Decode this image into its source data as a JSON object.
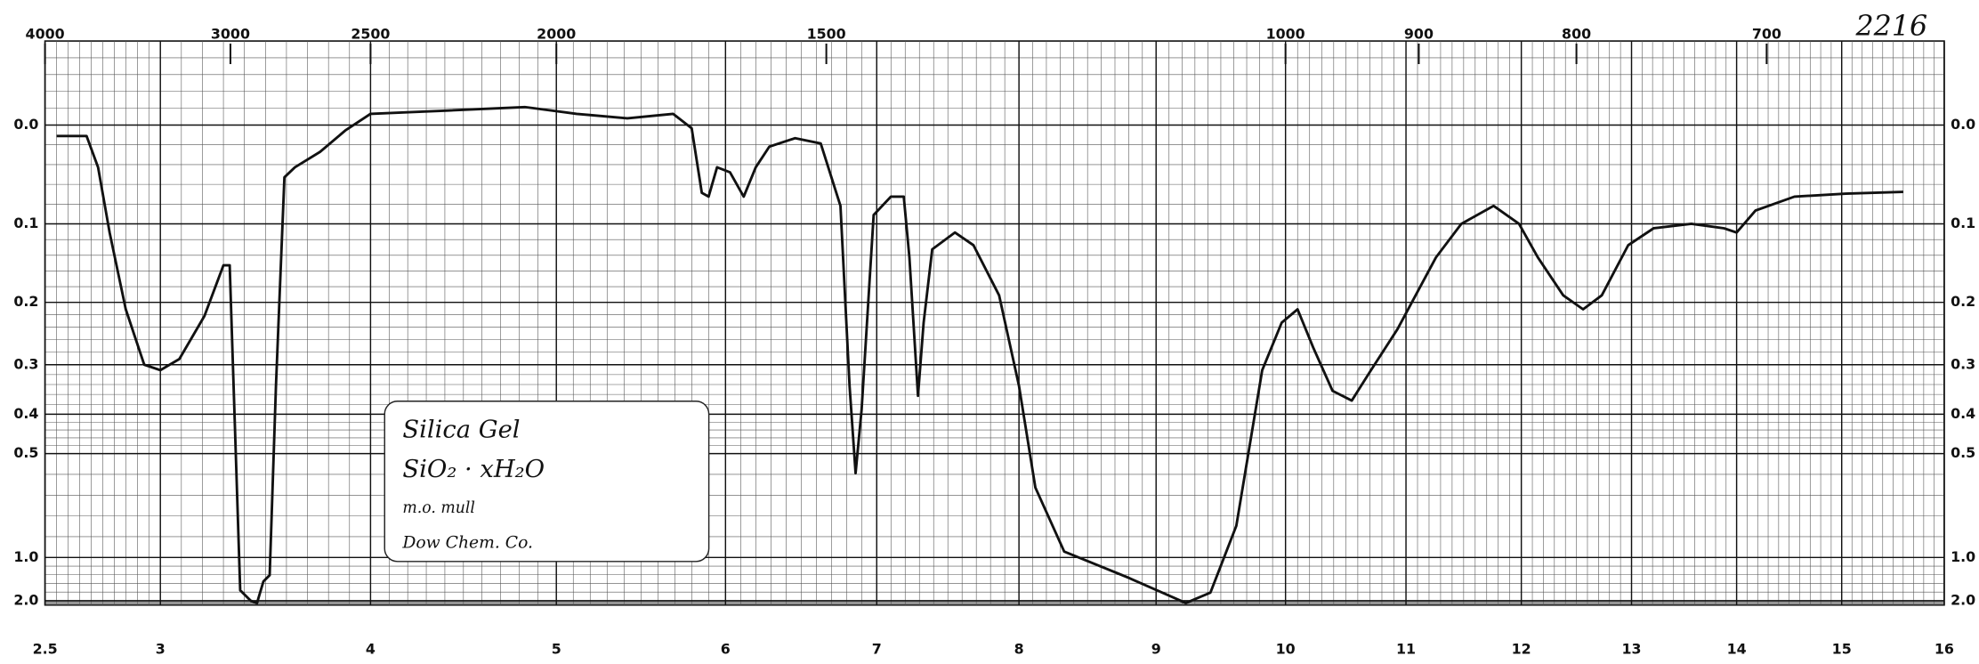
{
  "chart_data": {
    "type": "line",
    "yscale": "transmittance",
    "x": [
      2.55,
      2.68,
      2.73,
      2.78,
      2.85,
      2.93,
      3.0,
      3.09,
      3.21,
      3.3,
      3.33,
      3.38,
      3.43,
      3.46,
      3.49,
      3.52,
      3.55,
      3.59,
      3.64,
      3.76,
      3.88,
      4.0,
      4.42,
      4.83,
      5.12,
      5.42,
      5.69,
      5.8,
      5.86,
      5.9,
      5.95,
      6.03,
      6.12,
      6.2,
      6.29,
      6.46,
      6.63,
      6.76,
      6.82,
      6.86,
      6.9,
      6.98,
      7.1,
      7.19,
      7.23,
      7.29,
      7.33,
      7.39,
      7.55,
      7.68,
      7.86,
      8.0,
      8.12,
      8.33,
      8.79,
      9.23,
      9.42,
      9.62,
      9.82,
      9.97,
      10.1,
      10.23,
      10.39,
      10.55,
      10.71,
      10.93,
      11.26,
      11.48,
      11.76,
      11.98,
      12.15,
      12.38,
      12.56,
      12.73,
      12.97,
      13.21,
      13.57,
      13.88,
      14.0,
      14.18,
      14.55,
      15.04,
      15.6
    ],
    "values": [
      0.01,
      0.01,
      0.04,
      0.11,
      0.21,
      0.3,
      0.31,
      0.29,
      0.22,
      0.15,
      0.15,
      1.5,
      2.0,
      2.3,
      1.3,
      1.2,
      0.34,
      0.05,
      0.04,
      0.025,
      0.005,
      -0.01,
      -0.013,
      -0.016,
      -0.01,
      -0.006,
      -0.01,
      0.003,
      0.066,
      0.07,
      0.04,
      0.045,
      0.07,
      0.04,
      0.02,
      0.012,
      0.017,
      0.08,
      0.34,
      0.56,
      0.39,
      0.09,
      0.07,
      0.07,
      0.14,
      0.36,
      0.23,
      0.13,
      0.11,
      0.125,
      0.19,
      0.34,
      0.61,
      0.95,
      1.23,
      2.27,
      1.57,
      0.78,
      0.31,
      0.23,
      0.21,
      0.27,
      0.35,
      0.37,
      0.31,
      0.24,
      0.14,
      0.1,
      0.08,
      0.1,
      0.14,
      0.19,
      0.21,
      0.19,
      0.125,
      0.105,
      0.1,
      0.105,
      0.11,
      0.085,
      0.07,
      0.067,
      0.065
    ],
    "color": "#111111",
    "xlim": [
      2.5,
      16
    ],
    "xticks": [
      2.5,
      3,
      4,
      5,
      6,
      7,
      8,
      9,
      10,
      11,
      12,
      13,
      14,
      15,
      16
    ],
    "x2ticks": [
      4000,
      3000,
      2500,
      2000,
      1500,
      1000,
      900,
      800,
      700
    ],
    "ylim": [
      3,
      -0.07
    ],
    "yticks": [
      {
        "value": 0,
        "label": "0.0"
      },
      0.1,
      0.2,
      0.3,
      0.4,
      0.5,
      {
        "value": 1,
        "label": "1.0"
      },
      {
        "value": 2,
        "label": "2.0"
      }
    ],
    "grid": true,
    "annotations": {
      "number": "2216",
      "lines": [
        "Silica Gel",
        "SiO₂ · xH₂O",
        "m.o. mull",
        "Dow Chem. Co."
      ]
    }
  }
}
